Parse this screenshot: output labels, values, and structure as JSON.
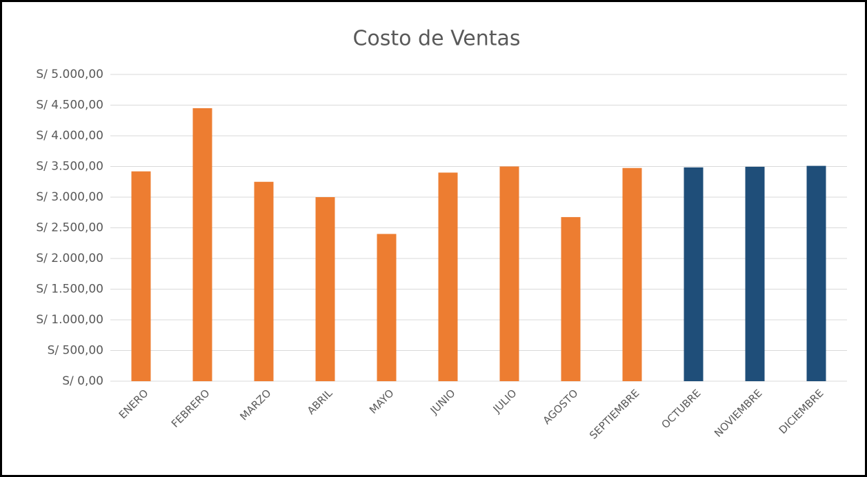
{
  "chart_data": {
    "type": "bar",
    "title": "Costo de Ventas",
    "categories": [
      "ENERO",
      "FEBRERO",
      "MARZO",
      "ABRIL",
      "MAYO",
      "JUNIO",
      "JULIO",
      "AGOSTO",
      "SEPTIEMBRE",
      "OCTUBRE",
      "NOVIEMBRE",
      "DICIEMBRE"
    ],
    "values": [
      3420,
      4450,
      3250,
      3000,
      2400,
      3400,
      3500,
      2675,
      3475,
      3485,
      3495,
      3510
    ],
    "colors": [
      "#ed7d31",
      "#ed7d31",
      "#ed7d31",
      "#ed7d31",
      "#ed7d31",
      "#ed7d31",
      "#ed7d31",
      "#ed7d31",
      "#ed7d31",
      "#1f4e79",
      "#1f4e79",
      "#1f4e79"
    ],
    "ylim": [
      0,
      5000
    ],
    "yticks": [
      {
        "value": 0,
        "label": "S/ 0,00"
      },
      {
        "value": 500,
        "label": "S/ 500,00"
      },
      {
        "value": 1000,
        "label": "S/ 1.000,00"
      },
      {
        "value": 1500,
        "label": "S/ 1.500,00"
      },
      {
        "value": 2000,
        "label": "S/ 2.000,00"
      },
      {
        "value": 2500,
        "label": "S/ 2.500,00"
      },
      {
        "value": 3000,
        "label": "S/ 3.000,00"
      },
      {
        "value": 3500,
        "label": "S/ 3.500,00"
      },
      {
        "value": 4000,
        "label": "S/ 4.000,00"
      },
      {
        "value": 4500,
        "label": "S/ 4.500,00"
      },
      {
        "value": 5000,
        "label": "S/ 5.000,00"
      }
    ],
    "grid": true
  }
}
